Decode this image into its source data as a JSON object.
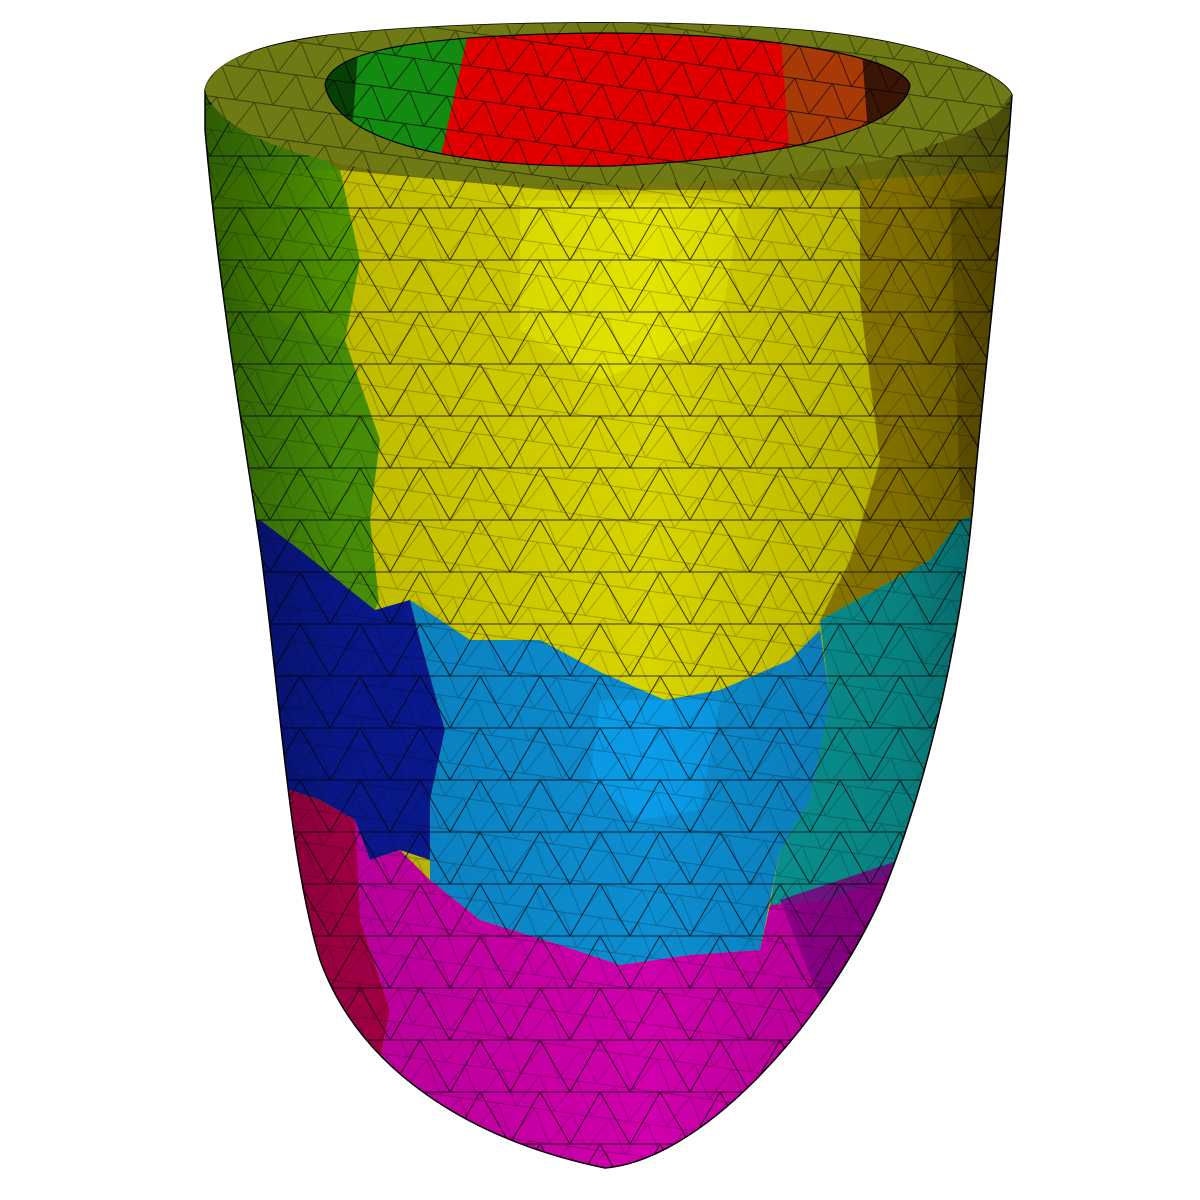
{
  "scene": {
    "background": "#ffffff",
    "edge_color": "#000000",
    "regions": [
      {
        "name": "basal-anterolateral-green",
        "color": "#3f9a16"
      },
      {
        "name": "basal-inner-red",
        "color": "#e60000"
      },
      {
        "name": "basal-yellow",
        "color": "#d8d800"
      },
      {
        "name": "basal-olive",
        "color": "#9a8600"
      },
      {
        "name": "mid-blue",
        "color": "#0a1fa0"
      },
      {
        "name": "mid-sky-blue",
        "color": "#0a8fd6"
      },
      {
        "name": "mid-teal",
        "color": "#0a9a9a"
      },
      {
        "name": "apical-magenta",
        "color": "#d000b0"
      },
      {
        "name": "apical-crimson",
        "color": "#b0004a"
      },
      {
        "name": "apical-purple",
        "color": "#8c008c"
      }
    ]
  }
}
